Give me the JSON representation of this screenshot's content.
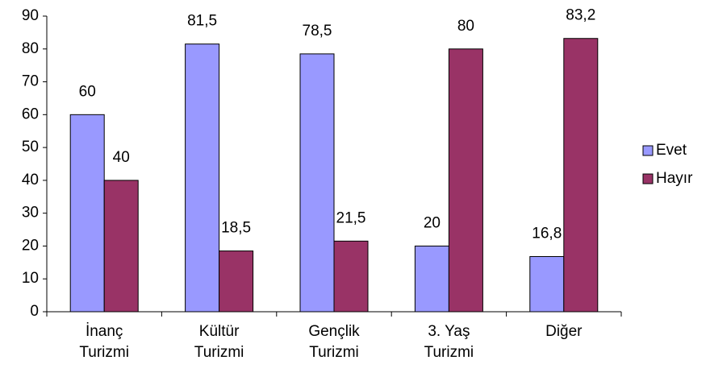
{
  "chart_data": {
    "type": "bar",
    "categories": [
      "İnanç Turizmi",
      "Kültür Turizmi",
      "Gençlik Turizmi",
      "3. Yaş Turizmi",
      "Diğer"
    ],
    "series": [
      {
        "name": "Evet",
        "color": "#9999ff",
        "values": [
          60,
          81.5,
          78.5,
          20,
          16.8
        ],
        "value_labels": [
          "60",
          "81,5",
          "78,5",
          "20",
          "16,8"
        ]
      },
      {
        "name": "Hayır",
        "color": "#993366",
        "values": [
          40,
          18.5,
          21.5,
          80,
          83.2
        ],
        "value_labels": [
          "40",
          "18,5",
          "21,5",
          "80",
          "83,2"
        ]
      }
    ],
    "ylim": [
      0,
      90
    ],
    "yticks": [
      0,
      10,
      20,
      30,
      40,
      50,
      60,
      70,
      80,
      90
    ],
    "grid": false,
    "legend": "right"
  }
}
